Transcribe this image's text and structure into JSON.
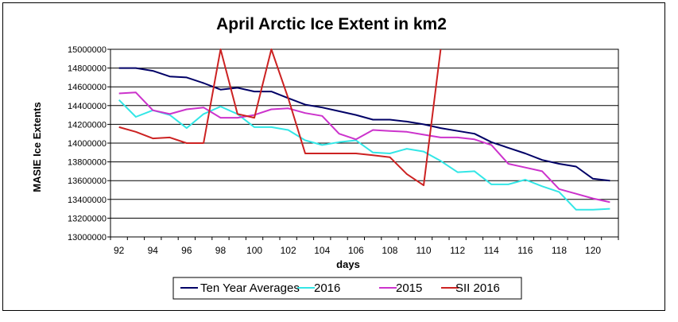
{
  "chart_data": {
    "type": "line",
    "title": "April Arctic Ice Extent in km2",
    "xlabel": "days",
    "ylabel": "MASIE Ice Extents",
    "xlim": [
      92,
      121
    ],
    "ylim": [
      13000000,
      15000000
    ],
    "yticks": [
      13000000,
      13200000,
      13400000,
      13600000,
      13800000,
      14000000,
      14200000,
      14400000,
      14600000,
      14800000,
      15000000
    ],
    "xticks": [
      92,
      94,
      96,
      98,
      100,
      102,
      104,
      106,
      108,
      110,
      112,
      114,
      116,
      118,
      120
    ],
    "legend_position": "bottom",
    "grid": true,
    "series": [
      {
        "name": "Ten Year Averages",
        "color": "#000066",
        "x": [
          92,
          93,
          94,
          95,
          96,
          97,
          98,
          99,
          100,
          101,
          102,
          103,
          104,
          105,
          106,
          107,
          108,
          109,
          110,
          111,
          112,
          113,
          114,
          115,
          116,
          117,
          118,
          119,
          120,
          121
        ],
        "values": [
          14800000,
          14800000,
          14770000,
          14710000,
          14700000,
          14640000,
          14570000,
          14590000,
          14550000,
          14550000,
          14480000,
          14410000,
          14380000,
          14340000,
          14300000,
          14250000,
          14250000,
          14230000,
          14200000,
          14160000,
          14130000,
          14100000,
          14010000,
          13950000,
          13890000,
          13820000,
          13780000,
          13750000,
          13620000,
          13600000
        ]
      },
      {
        "name": "2016",
        "color": "#33e6e6",
        "x": [
          92,
          93,
          94,
          95,
          96,
          97,
          98,
          99,
          100,
          101,
          102,
          103,
          104,
          105,
          106,
          107,
          108,
          109,
          110,
          111,
          112,
          113,
          114,
          115,
          116,
          117,
          118,
          119,
          120,
          121
        ],
        "values": [
          14460000,
          14280000,
          14350000,
          14300000,
          14160000,
          14310000,
          14390000,
          14310000,
          14170000,
          14170000,
          14140000,
          14030000,
          13980000,
          14010000,
          14030000,
          13900000,
          13890000,
          13940000,
          13910000,
          13810000,
          13690000,
          13700000,
          13560000,
          13560000,
          13610000,
          13540000,
          13480000,
          13290000,
          13290000,
          13300000
        ]
      },
      {
        "name": "2015",
        "color": "#cc33cc",
        "x": [
          92,
          93,
          94,
          95,
          96,
          97,
          98,
          99,
          100,
          101,
          102,
          103,
          104,
          105,
          106,
          107,
          108,
          109,
          110,
          111,
          112,
          113,
          114,
          115,
          116,
          117,
          118,
          119,
          120,
          121
        ],
        "values": [
          14530000,
          14540000,
          14350000,
          14310000,
          14360000,
          14380000,
          14270000,
          14270000,
          14300000,
          14360000,
          14370000,
          14320000,
          14290000,
          14100000,
          14040000,
          14140000,
          14130000,
          14120000,
          14090000,
          14060000,
          14060000,
          14040000,
          13980000,
          13780000,
          13740000,
          13700000,
          13510000,
          13460000,
          13410000,
          13370000
        ]
      },
      {
        "name": "SII 2016",
        "color": "#cc2222",
        "x": [
          92,
          93,
          94,
          95,
          96,
          97,
          98,
          99,
          100,
          101,
          102,
          103,
          104,
          105,
          106,
          107,
          108,
          109,
          110,
          111
        ],
        "values": [
          14170000,
          14120000,
          14050000,
          14060000,
          14000000,
          14000000,
          15000000,
          14310000,
          14270000,
          15000000,
          14480000,
          13890000,
          13890000,
          13890000,
          13890000,
          13870000,
          13850000,
          13670000,
          13550000,
          15000000
        ]
      }
    ]
  }
}
